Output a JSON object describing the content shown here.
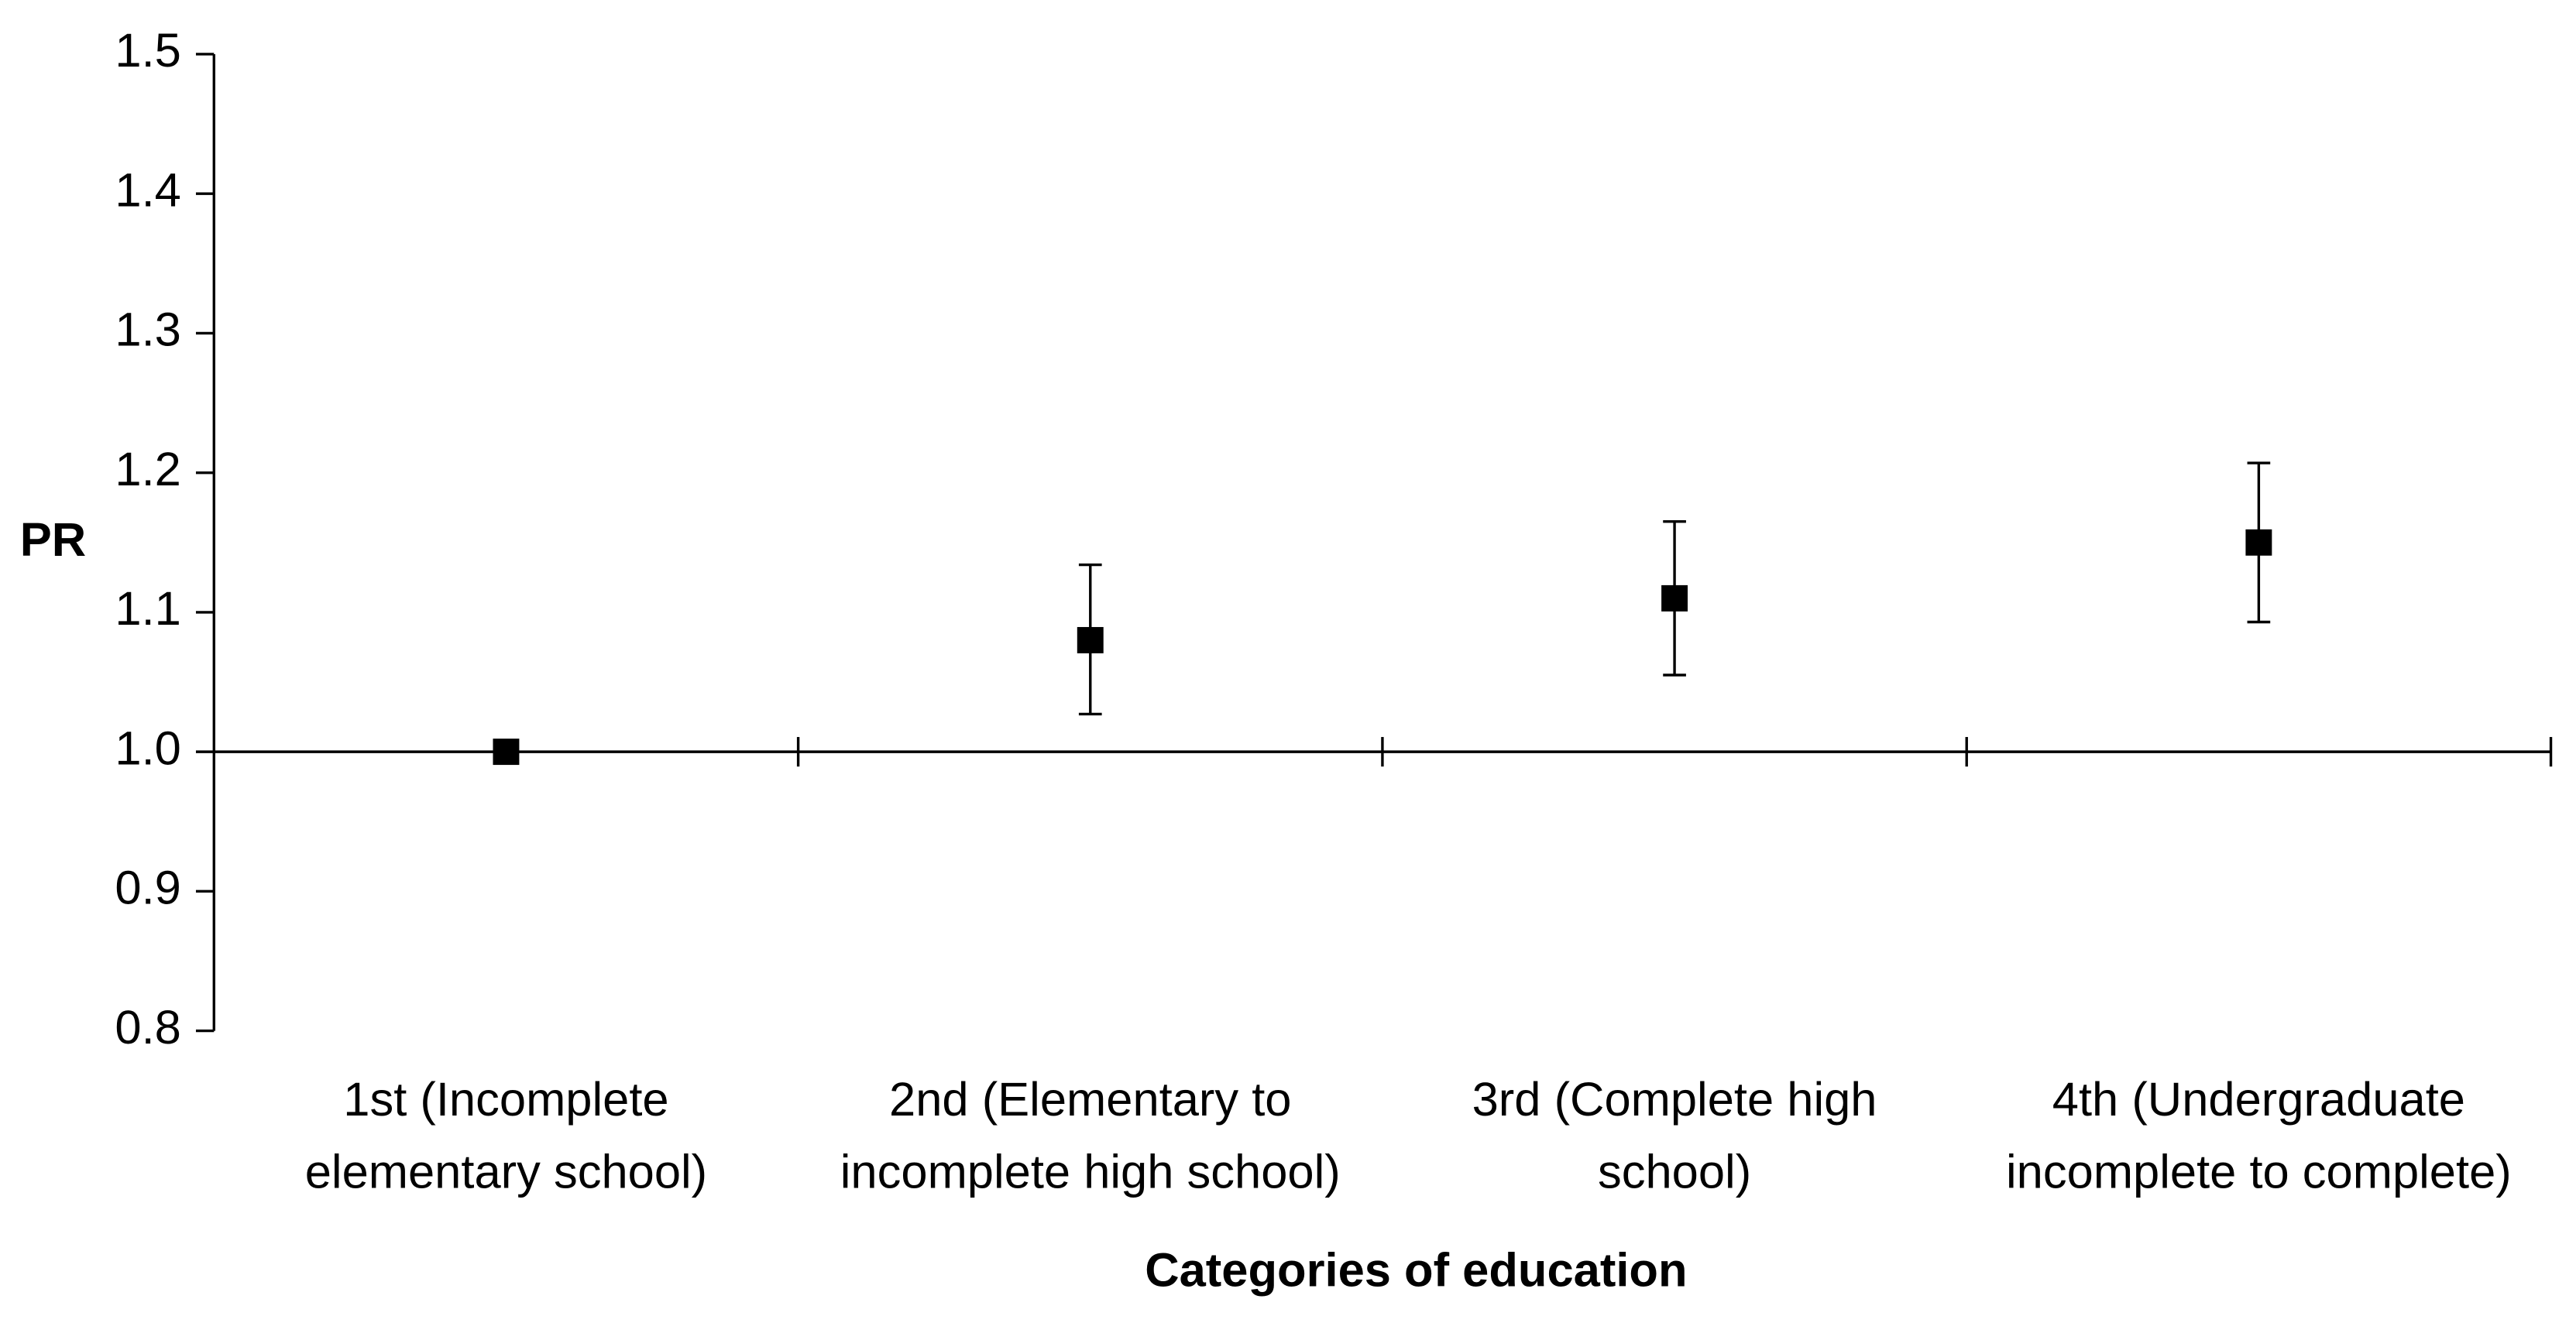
{
  "chart_data": {
    "type": "errorbar",
    "y_label": "PR",
    "x_label": "Categories of education",
    "categories": [
      [
        "1st (Incomplete",
        "elementary school)"
      ],
      [
        "2nd (Elementary to",
        "incomplete high school)"
      ],
      [
        "3rd (Complete high",
        "school)"
      ],
      [
        "4th (Undergraduate",
        "incomplete to complete)"
      ]
    ],
    "values": [
      1.0,
      1.08,
      1.11,
      1.15
    ],
    "ci_lower": [
      0.995,
      1.027,
      1.055,
      1.093
    ],
    "ci_upper": [
      1.005,
      1.134,
      1.165,
      1.207
    ],
    "color": "#000000",
    "reference_line": 1,
    "ylim": [
      0.8,
      1.5
    ],
    "yticks": [
      0.8,
      0.9,
      {
        "value": 1,
        "label": "1.0"
      },
      1.1,
      1.2,
      1.3,
      1.4,
      1.5
    ]
  }
}
